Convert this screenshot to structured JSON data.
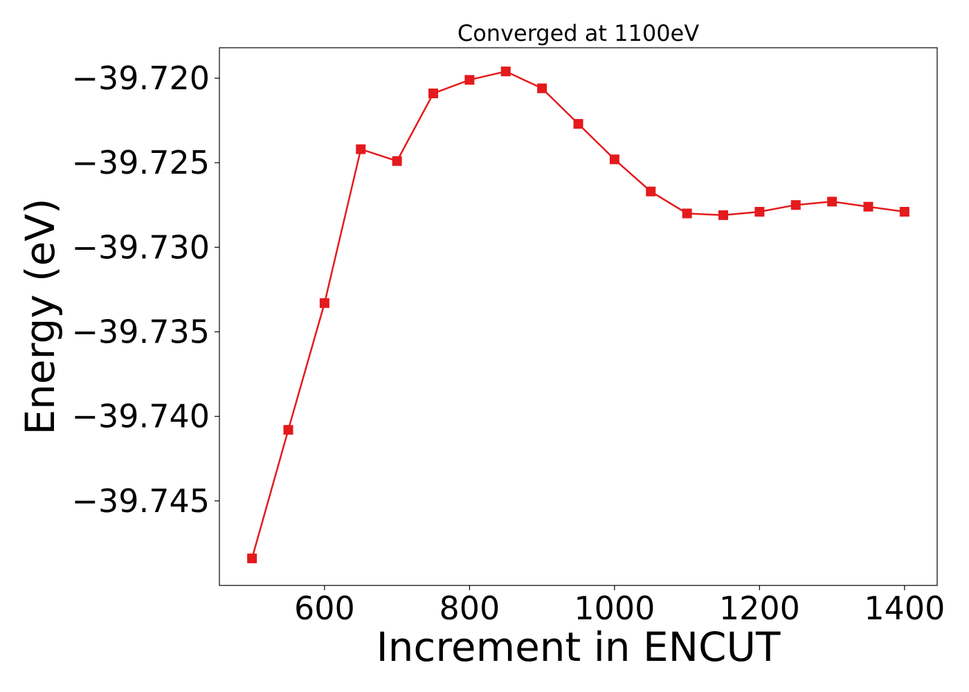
{
  "chart_data": {
    "type": "line",
    "title": "Converged at 1100eV",
    "xlabel": "Increment in ENCUT",
    "ylabel": "Energy (eV)",
    "x": [
      500,
      550,
      600,
      650,
      700,
      750,
      800,
      850,
      900,
      950,
      1000,
      1050,
      1100,
      1150,
      1200,
      1250,
      1300,
      1350,
      1400
    ],
    "series": [
      {
        "values": [
          -39.7484,
          -39.7408,
          -39.7333,
          -39.7242,
          -39.7249,
          -39.7209,
          -39.7201,
          -39.7196,
          -39.7206,
          -39.7227,
          -39.7248,
          -39.7267,
          -39.728,
          -39.7281,
          -39.7279,
          -39.7275,
          -39.7273,
          -39.7276,
          -39.7279
        ],
        "color": "#e41a1c",
        "marker": "square"
      }
    ],
    "xlim": [
      455,
      1445
    ],
    "ylim": [
      -39.75,
      -39.7182
    ],
    "xticks": [
      600,
      800,
      1000,
      1200,
      1400
    ],
    "xtick_labels": [
      "600",
      "800",
      "1000",
      "1200",
      "1400"
    ],
    "yticks": [
      -39.72,
      -39.725,
      -39.73,
      -39.735,
      -39.74,
      -39.745
    ],
    "ytick_labels": [
      "−39.720",
      "−39.725",
      "−39.730",
      "−39.735",
      "−39.740",
      "−39.745"
    ],
    "grid": false,
    "legend": "none"
  }
}
